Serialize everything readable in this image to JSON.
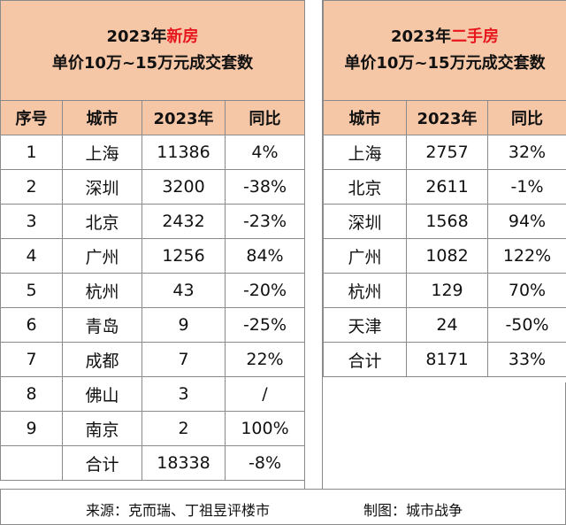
{
  "left": {
    "title_line1_prefix": "2023年",
    "title_line1_highlight": "新房",
    "title_line2": "单价10万~15万元成交套数",
    "headers": [
      "序号",
      "城市",
      "2023年",
      "同比"
    ],
    "rows": [
      {
        "no": "1",
        "city": "上海",
        "count": "11386",
        "yoy": "4%"
      },
      {
        "no": "2",
        "city": "深圳",
        "count": "3200",
        "yoy": "-38%"
      },
      {
        "no": "3",
        "city": "北京",
        "count": "2432",
        "yoy": "-23%"
      },
      {
        "no": "4",
        "city": "广州",
        "count": "1256",
        "yoy": "84%"
      },
      {
        "no": "5",
        "city": "杭州",
        "count": "43",
        "yoy": "-20%"
      },
      {
        "no": "6",
        "city": "青岛",
        "count": "9",
        "yoy": "-25%"
      },
      {
        "no": "7",
        "city": "成都",
        "count": "7",
        "yoy": "22%"
      },
      {
        "no": "8",
        "city": "佛山",
        "count": "3",
        "yoy": "/"
      },
      {
        "no": "9",
        "city": "南京",
        "count": "2",
        "yoy": "100%"
      },
      {
        "no": "",
        "city": "合计",
        "count": "18338",
        "yoy": "-8%"
      }
    ]
  },
  "right": {
    "title_line1_prefix": "2023年",
    "title_line1_highlight": "二手房",
    "title_line2": "单价10万~15万元成交套数",
    "headers": [
      "城市",
      "2023年",
      "同比"
    ],
    "rows": [
      {
        "city": "上海",
        "count": "2757",
        "yoy": "32%"
      },
      {
        "city": "北京",
        "count": "2611",
        "yoy": "-1%"
      },
      {
        "city": "深圳",
        "count": "1568",
        "yoy": "94%"
      },
      {
        "city": "广州",
        "count": "1082",
        "yoy": "122%"
      },
      {
        "city": "杭州",
        "count": "129",
        "yoy": "70%"
      },
      {
        "city": "天津",
        "count": "24",
        "yoy": "-50%"
      },
      {
        "city": "合计",
        "count": "8171",
        "yoy": "33%"
      }
    ]
  },
  "footer": {
    "source": "来源：克而瑞、丁祖昱评楼市",
    "made_by": "制图：城市战争"
  },
  "colors": {
    "header_fill": "#f6c7a7",
    "highlight": "#e8161d",
    "border": "#8a8a8a"
  }
}
